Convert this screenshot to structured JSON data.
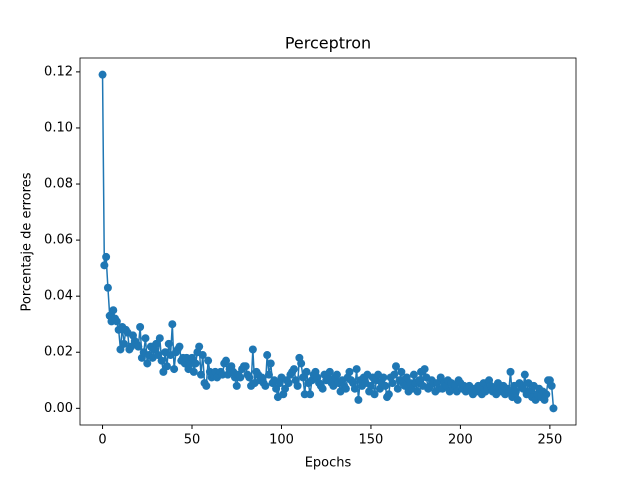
{
  "chart_data": {
    "type": "line",
    "title": "Perceptron",
    "xlabel": "Epochs",
    "ylabel": "Porcentaje de errores",
    "color": "#1f77b4",
    "marker": "circle",
    "x": [
      0,
      1,
      2,
      3,
      4,
      5,
      6,
      7,
      8,
      9,
      10,
      11,
      12,
      13,
      14,
      15,
      16,
      17,
      18,
      19,
      20,
      21,
      22,
      23,
      24,
      25,
      26,
      27,
      28,
      29,
      30,
      31,
      32,
      33,
      34,
      35,
      36,
      37,
      38,
      39,
      40,
      41,
      42,
      43,
      44,
      45,
      46,
      47,
      48,
      49,
      50,
      51,
      52,
      53,
      54,
      55,
      56,
      57,
      58,
      59,
      60,
      61,
      62,
      63,
      64,
      65,
      66,
      67,
      68,
      69,
      70,
      71,
      72,
      73,
      74,
      75,
      76,
      77,
      78,
      79,
      80,
      81,
      82,
      83,
      84,
      85,
      86,
      87,
      88,
      89,
      90,
      91,
      92,
      93,
      94,
      95,
      96,
      97,
      98,
      99,
      100,
      101,
      102,
      103,
      104,
      105,
      106,
      107,
      108,
      109,
      110,
      111,
      112,
      113,
      114,
      115,
      116,
      117,
      118,
      119,
      120,
      121,
      122,
      123,
      124,
      125,
      126,
      127,
      128,
      129,
      130,
      131,
      132,
      133,
      134,
      135,
      136,
      137,
      138,
      139,
      140,
      141,
      142,
      143,
      144,
      145,
      146,
      147,
      148,
      149,
      150,
      151,
      152,
      153,
      154,
      155,
      156,
      157,
      158,
      159,
      160,
      161,
      162,
      163,
      164,
      165,
      166,
      167,
      168,
      169,
      170,
      171,
      172,
      173,
      174,
      175,
      176,
      177,
      178,
      179,
      180,
      181,
      182,
      183,
      184,
      185,
      186,
      187,
      188,
      189,
      190,
      191,
      192,
      193,
      194,
      195,
      196,
      197,
      198,
      199,
      200,
      201,
      202,
      203,
      204,
      205,
      206,
      207,
      208,
      209,
      210,
      211,
      212,
      213,
      214,
      215,
      216,
      217,
      218,
      219,
      220,
      221,
      222,
      223,
      224,
      225,
      226,
      227,
      228,
      229,
      230,
      231,
      232,
      233,
      234,
      235,
      236,
      237,
      238,
      239,
      240,
      241,
      242,
      243,
      244,
      245,
      246,
      247,
      248,
      249,
      250,
      251,
      252
    ],
    "values": [
      0.119,
      0.051,
      0.054,
      0.043,
      0.033,
      0.031,
      0.035,
      0.032,
      0.031,
      0.028,
      0.021,
      0.029,
      0.023,
      0.028,
      0.027,
      0.021,
      0.022,
      0.026,
      0.024,
      0.023,
      0.022,
      0.029,
      0.018,
      0.02,
      0.025,
      0.016,
      0.019,
      0.022,
      0.018,
      0.021,
      0.023,
      0.019,
      0.025,
      0.017,
      0.013,
      0.02,
      0.015,
      0.023,
      0.019,
      0.03,
      0.014,
      0.02,
      0.021,
      0.022,
      0.017,
      0.018,
      0.016,
      0.018,
      0.014,
      0.016,
      0.018,
      0.013,
      0.016,
      0.02,
      0.022,
      0.012,
      0.019,
      0.009,
      0.008,
      0.017,
      0.013,
      0.011,
      0.012,
      0.013,
      0.011,
      0.012,
      0.013,
      0.012,
      0.016,
      0.017,
      0.012,
      0.014,
      0.015,
      0.013,
      0.011,
      0.008,
      0.012,
      0.011,
      0.014,
      0.015,
      0.015,
      0.012,
      0.011,
      0.008,
      0.021,
      0.009,
      0.013,
      0.012,
      0.01,
      0.011,
      0.009,
      0.008,
      0.019,
      0.012,
      0.016,
      0.009,
      0.01,
      0.007,
      0.004,
      0.009,
      0.011,
      0.005,
      0.007,
      0.01,
      0.009,
      0.012,
      0.013,
      0.014,
      0.01,
      0.008,
      0.018,
      0.016,
      0.011,
      0.005,
      0.013,
      0.009,
      0.005,
      0.01,
      0.012,
      0.013,
      0.011,
      0.009,
      0.008,
      0.007,
      0.012,
      0.01,
      0.011,
      0.013,
      0.009,
      0.008,
      0.011,
      0.012,
      0.009,
      0.006,
      0.01,
      0.008,
      0.007,
      0.011,
      0.013,
      0.01,
      0.009,
      0.007,
      0.014,
      0.003,
      0.01,
      0.008,
      0.011,
      0.009,
      0.012,
      0.006,
      0.008,
      0.011,
      0.005,
      0.01,
      0.012,
      0.007,
      0.009,
      0.011,
      0.008,
      0.004,
      0.005,
      0.011,
      0.009,
      0.012,
      0.015,
      0.007,
      0.01,
      0.013,
      0.009,
      0.008,
      0.011,
      0.006,
      0.009,
      0.007,
      0.012,
      0.009,
      0.006,
      0.01,
      0.013,
      0.008,
      0.014,
      0.011,
      0.007,
      0.008,
      0.01,
      0.009,
      0.006,
      0.009,
      0.007,
      0.011,
      0.007,
      0.009,
      0.008,
      0.01,
      0.006,
      0.009,
      0.007,
      0.008,
      0.006,
      0.01,
      0.009,
      0.007,
      0.008,
      0.006,
      0.007,
      0.008,
      0.006,
      0.005,
      0.007,
      0.006,
      0.008,
      0.007,
      0.005,
      0.009,
      0.006,
      0.007,
      0.01,
      0.008,
      0.006,
      0.007,
      0.005,
      0.009,
      0.007,
      0.006,
      0.008,
      0.005,
      0.007,
      0.006,
      0.013,
      0.004,
      0.008,
      0.006,
      0.003,
      0.009,
      0.008,
      0.007,
      0.012,
      0.005,
      0.009,
      0.006,
      0.004,
      0.008,
      0.003,
      0.005,
      0.007,
      0.004,
      0.006,
      0.003,
      0.005,
      0.01,
      0.01,
      0.008,
      0.0
    ],
    "xlim": [
      -12.6,
      264.6
    ],
    "ylim": [
      -0.00595,
      0.12495
    ],
    "xticks": [
      0,
      50,
      100,
      150,
      200,
      250
    ],
    "yticks": [
      {
        "value": 0,
        "label": "0.00"
      },
      {
        "value": 0.02,
        "label": "0.02"
      },
      {
        "value": 0.04,
        "label": "0.04"
      },
      {
        "value": 0.06,
        "label": "0.06"
      },
      {
        "value": 0.08,
        "label": "0.08"
      },
      {
        "value": 0.1,
        "label": "0.10"
      },
      {
        "value": 0.12,
        "label": "0.12"
      }
    ]
  }
}
